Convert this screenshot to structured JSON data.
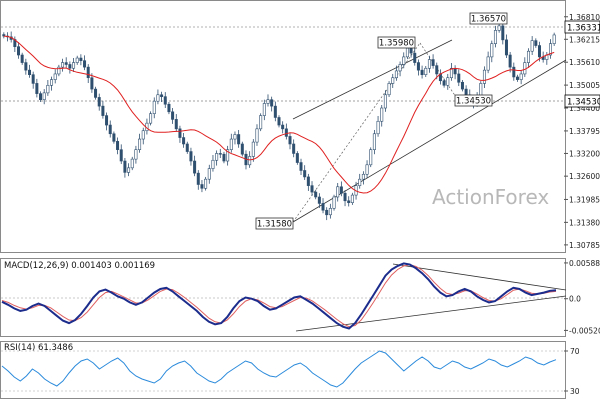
{
  "chart_data": [
    {
      "type": "candlestick",
      "panel": "price",
      "watermark": "ActionForex",
      "ylim": [
        1.3065,
        1.372
      ],
      "y_ticks": [
        "1.36810",
        "1.36215",
        "1.35610",
        "1.35005",
        "1.34400",
        "1.33795",
        "1.33200",
        "1.32600",
        "1.31985",
        "1.31380",
        "1.30785"
      ],
      "current_price": "1.36331",
      "horizontal_level": "1.34530",
      "annotations": [
        "1.35980",
        "1.36570",
        "1.34530",
        "1.31580"
      ],
      "moving_average": "red",
      "trend_channel": "rising, drawn from the 1.31580 low",
      "close_series": [
        1.363,
        1.3628,
        1.3621,
        1.3602,
        1.358,
        1.356,
        1.354,
        1.3528,
        1.3505,
        1.3478,
        1.3462,
        1.348,
        1.35,
        1.3515,
        1.353,
        1.3548,
        1.356,
        1.3555,
        1.3545,
        1.356,
        1.3572,
        1.3565,
        1.3548,
        1.352,
        1.349,
        1.3468,
        1.3445,
        1.342,
        1.3395,
        1.3372,
        1.3352,
        1.333,
        1.33,
        1.327,
        1.3282,
        1.3305,
        1.333,
        1.3358,
        1.338,
        1.34,
        1.3425,
        1.3458,
        1.3475,
        1.347,
        1.345,
        1.343,
        1.341,
        1.3385,
        1.3362,
        1.3345,
        1.3325,
        1.33,
        1.3268,
        1.3238,
        1.3228,
        1.3252,
        1.328,
        1.3302,
        1.332,
        1.3318,
        1.33,
        1.333,
        1.3358,
        1.337,
        1.3345,
        1.3318,
        1.329,
        1.3312,
        1.335,
        1.3385,
        1.342,
        1.3452,
        1.3462,
        1.3445,
        1.3415,
        1.3395,
        1.3385,
        1.3365,
        1.3345,
        1.332,
        1.3296,
        1.3275,
        1.3258,
        1.3235,
        1.3218,
        1.3205,
        1.3188,
        1.317,
        1.3158,
        1.3175,
        1.3205,
        1.3232,
        1.3215,
        1.3195,
        1.319,
        1.321,
        1.3235,
        1.3252,
        1.3265,
        1.329,
        1.333,
        1.3372,
        1.3405,
        1.344,
        1.3475,
        1.3505,
        1.352,
        1.3538,
        1.3555,
        1.3575,
        1.3598,
        1.3585,
        1.356,
        1.354,
        1.3528,
        1.3545,
        1.3568,
        1.3552,
        1.353,
        1.3512,
        1.35,
        1.352,
        1.3545,
        1.353,
        1.3508,
        1.349,
        1.3475,
        1.346,
        1.3453,
        1.347,
        1.3505,
        1.354,
        1.3575,
        1.361,
        1.3645,
        1.3657,
        1.362,
        1.358,
        1.3548,
        1.3522,
        1.3515,
        1.353,
        1.356,
        1.359,
        1.3618,
        1.3605,
        1.3575,
        1.3568,
        1.358,
        1.361,
        1.3633
      ]
    },
    {
      "type": "line",
      "panel": "macd",
      "label": "MACD(12,26,9) 0.001403 0.001169",
      "ylim": [
        -0.0058,
        0.0062
      ],
      "y_ticks": [
        "0.005883",
        "0.0",
        "-0.005209"
      ],
      "macd_series": [
        -0.0005,
        -0.001,
        -0.0016,
        -0.002,
        -0.0018,
        -0.0012,
        -0.0008,
        -0.0012,
        -0.002,
        -0.0028,
        -0.0036,
        -0.004,
        -0.0035,
        -0.0025,
        -0.0012,
        0.0002,
        0.0012,
        0.0015,
        0.001,
        0.0004,
        0.0,
        -0.0006,
        -0.001,
        -0.0006,
        0.0002,
        0.001,
        0.0016,
        0.0018,
        0.0012,
        0.0004,
        -0.0004,
        -0.0012,
        -0.002,
        -0.003,
        -0.0038,
        -0.0042,
        -0.004,
        -0.003,
        -0.0016,
        -0.0004,
        0.0002,
        0.0,
        -0.0004,
        -0.0012,
        -0.0018,
        -0.0016,
        -0.001,
        -0.0004,
        0.0002,
        0.0004,
        -0.0002,
        -0.0008,
        -0.0016,
        -0.0024,
        -0.0032,
        -0.004,
        -0.0046,
        -0.0049,
        -0.004,
        -0.0026,
        -0.001,
        0.0006,
        0.0022,
        0.0038,
        0.0048,
        0.0054,
        0.0058,
        0.0056,
        0.005,
        0.0042,
        0.0032,
        0.002,
        0.001,
        0.0004,
        0.0006,
        0.0012,
        0.0016,
        0.0012,
        0.0004,
        -0.0002,
        -0.0006,
        -0.0004,
        0.0004,
        0.0012,
        0.0018,
        0.0016,
        0.001,
        0.0006,
        0.0008,
        0.001,
        0.0013,
        0.0014
      ],
      "signal_series": [
        -0.0003,
        -0.0006,
        -0.0011,
        -0.0015,
        -0.0017,
        -0.0015,
        -0.0011,
        -0.0011,
        -0.0015,
        -0.0022,
        -0.0029,
        -0.0035,
        -0.0036,
        -0.0031,
        -0.0022,
        -0.001,
        0.0002,
        0.001,
        0.0012,
        0.0008,
        0.0003,
        -0.0002,
        -0.0007,
        -0.0007,
        -0.0002,
        0.0005,
        0.0012,
        0.0016,
        0.0015,
        0.0009,
        0.0002,
        -0.0006,
        -0.0014,
        -0.0023,
        -0.0032,
        -0.0038,
        -0.004,
        -0.0035,
        -0.0025,
        -0.0013,
        -0.0004,
        0.0,
        -0.0002,
        -0.0007,
        -0.0013,
        -0.0015,
        -0.0013,
        -0.0008,
        -0.0003,
        0.0002,
        0.0001,
        -0.0004,
        -0.0011,
        -0.0018,
        -0.0026,
        -0.0034,
        -0.0041,
        -0.0046,
        -0.0044,
        -0.0035,
        -0.0021,
        -0.0006,
        0.001,
        0.0026,
        0.0039,
        0.0048,
        0.0054,
        0.0056,
        0.0053,
        0.0047,
        0.0038,
        0.0027,
        0.0017,
        0.0009,
        0.0007,
        0.0009,
        0.0013,
        0.0013,
        0.0008,
        0.0002,
        -0.0003,
        -0.0004,
        0.0,
        0.0007,
        0.0014,
        0.0016,
        0.0013,
        0.0009,
        0.0008,
        0.0009,
        0.0011,
        0.0012
      ],
      "colors": {
        "macd": "#1c2c8c",
        "signal": "#e06060"
      },
      "trendlines": [
        "descending from the 0.005883 high",
        "ascending from the lowest trough"
      ]
    },
    {
      "type": "line",
      "panel": "rsi",
      "label": "RSI(14) 61.3486",
      "ylim": [
        24,
        78
      ],
      "y_ticks": [
        "70",
        "30"
      ],
      "rsi_series": [
        55,
        50,
        44,
        40,
        45,
        52,
        48,
        42,
        38,
        35,
        40,
        48,
        55,
        60,
        62,
        58,
        52,
        56,
        60,
        63,
        58,
        50,
        45,
        42,
        40,
        38,
        42,
        50,
        55,
        58,
        60,
        55,
        48,
        44,
        40,
        38,
        42,
        48,
        52,
        56,
        60,
        58,
        52,
        48,
        45,
        44,
        48,
        52,
        56,
        58,
        54,
        48,
        44,
        40,
        36,
        34,
        38,
        45,
        52,
        58,
        62,
        66,
        70,
        68,
        62,
        56,
        50,
        55,
        60,
        64,
        60,
        54,
        52,
        56,
        60,
        58,
        54,
        52,
        55,
        58,
        62,
        60,
        56,
        54,
        57,
        60,
        64,
        62,
        58,
        56,
        59,
        61.3
      ]
    }
  ]
}
